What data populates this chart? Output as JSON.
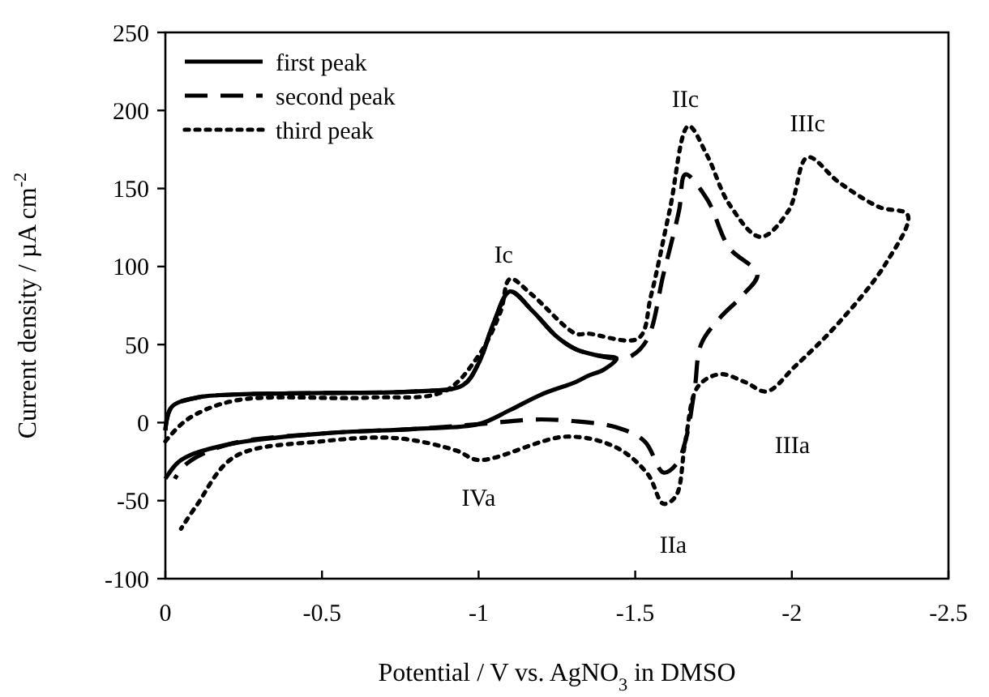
{
  "chart_data": {
    "type": "line",
    "xlabel": "Potential / V vs. AgNO$_{3}$ in DMSO",
    "ylabel": "Current density / µA cm$^{-2}$",
    "xlim": [
      0,
      -2.5
    ],
    "xticks": [
      0,
      -0.5,
      -1,
      -1.5,
      -2,
      -2.5
    ],
    "ylim": [
      -100,
      250
    ],
    "yticks": [
      -100,
      -50,
      0,
      50,
      100,
      150,
      200,
      250
    ],
    "grid": false,
    "legend": "top left",
    "series": [
      {
        "name": "first peak",
        "color": "#000000",
        "line_style": "solid",
        "x": [
          0,
          -0.02,
          -0.1,
          -0.22,
          -0.5,
          -0.8,
          -0.95,
          -1.0,
          -1.05,
          -1.1,
          -1.17,
          -1.25,
          -1.31,
          -1.38,
          -1.44,
          -1.4,
          -1.35,
          -1.31,
          -1.2,
          -1.1,
          -1.0,
          -0.8,
          -0.5,
          -0.2,
          -0.05,
          0
        ],
        "values": [
          -5,
          10,
          16,
          18,
          19,
          20,
          24,
          38,
          65,
          84,
          72,
          55,
          47,
          43,
          41,
          34,
          30,
          26,
          18,
          8,
          -1,
          -4,
          -7,
          -14,
          -24,
          -36
        ]
      },
      {
        "name": "second peak",
        "color": "#000000",
        "line_style": "dashed",
        "x": [
          0,
          -0.02,
          -0.1,
          -0.22,
          -0.5,
          -0.8,
          -0.95,
          -1.0,
          -1.05,
          -1.1,
          -1.17,
          -1.25,
          -1.31,
          -1.38,
          -1.44,
          -1.49,
          -1.54,
          -1.59,
          -1.64,
          -1.66,
          -1.73,
          -1.8,
          -1.89,
          -1.84,
          -1.77,
          -1.71,
          -1.69,
          -1.66,
          -1.63,
          -1.59,
          -1.53,
          -1.44,
          -1.3,
          -1.18,
          -1.0,
          -0.8,
          -0.5,
          -0.2,
          -0.07,
          -0.03
        ],
        "values": [
          -5,
          10,
          16,
          18,
          19,
          20,
          24,
          38,
          65,
          84,
          72,
          55,
          47,
          43,
          41,
          43,
          54,
          95,
          136,
          159,
          143,
          112,
          95,
          81,
          67,
          50,
          22,
          -12,
          -27,
          -32,
          -12,
          -3,
          1,
          2,
          -1,
          -4,
          -7,
          -14,
          -26,
          -36
        ]
      },
      {
        "name": "third peak",
        "color": "#000000",
        "line_style": "dotted",
        "x": [
          0,
          -0.07,
          -0.22,
          -0.65,
          -0.89,
          -1.0,
          -1.07,
          -1.1,
          -1.17,
          -1.31,
          -1.35,
          -1.51,
          -1.55,
          -1.61,
          -1.67,
          -1.73,
          -1.8,
          -1.9,
          -1.99,
          -2.05,
          -2.15,
          -2.28,
          -2.37,
          -2.3,
          -2.15,
          -2.01,
          -1.92,
          -1.85,
          -1.77,
          -1.7,
          -1.66,
          -1.63,
          -1.59,
          -1.54,
          -1.44,
          -1.28,
          -1.0,
          -0.93,
          -0.74,
          -0.5,
          -0.22,
          -0.1,
          -0.05
        ],
        "values": [
          -12,
          2,
          14,
          16,
          20,
          43,
          71,
          92,
          82,
          57,
          57,
          54,
          81,
          136,
          190,
          171,
          140,
          119,
          136,
          170,
          154,
          138,
          133,
          102,
          64,
          36,
          20,
          26,
          31,
          23,
          -12,
          -47,
          -52,
          -33,
          -16,
          -9,
          -24,
          -18,
          -10,
          -12,
          -22,
          -53,
          -68
        ]
      }
    ],
    "annotations": [
      {
        "text": "Ic",
        "x": -1.08,
        "y": 84
      },
      {
        "text": "IIc",
        "x": -1.66,
        "y": 190
      },
      {
        "text": "IIIc",
        "x": -2.05,
        "y": 170
      },
      {
        "text": "IIIa",
        "x": -1.95,
        "y": 20
      },
      {
        "text": "IIa",
        "x": -1.59,
        "y": -52
      },
      {
        "text": "IVa",
        "x": -1.0,
        "y": -24
      }
    ]
  }
}
